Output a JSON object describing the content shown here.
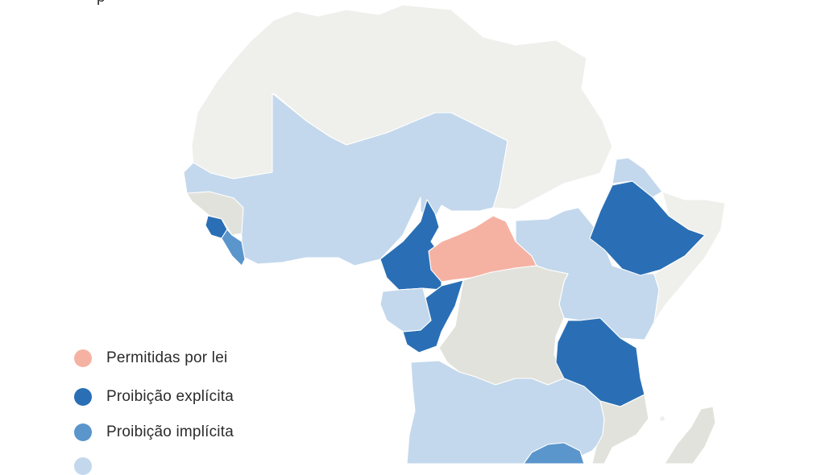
{
  "header": {
    "title_fragment": "p"
  },
  "colors": {
    "no_data": "#efefec",
    "no_data_dark": "#e2e2dc",
    "permitted": "#f5b2a3",
    "explicit": "#2a6fb5",
    "implicit": "#5a95cc",
    "other": "#c3d8ec"
  },
  "legend": [
    {
      "category": "permitted",
      "label": "Permitidas por lei",
      "color": "#f5b2a3"
    },
    {
      "category": "explicit",
      "label": "Proibição explícita",
      "color": "#2a6fb5"
    },
    {
      "category": "implicit",
      "label": "Proibição implícita",
      "color": "#5a95cc"
    },
    {
      "category": "other",
      "label": "",
      "color": "#c3d8ec"
    }
  ]
}
